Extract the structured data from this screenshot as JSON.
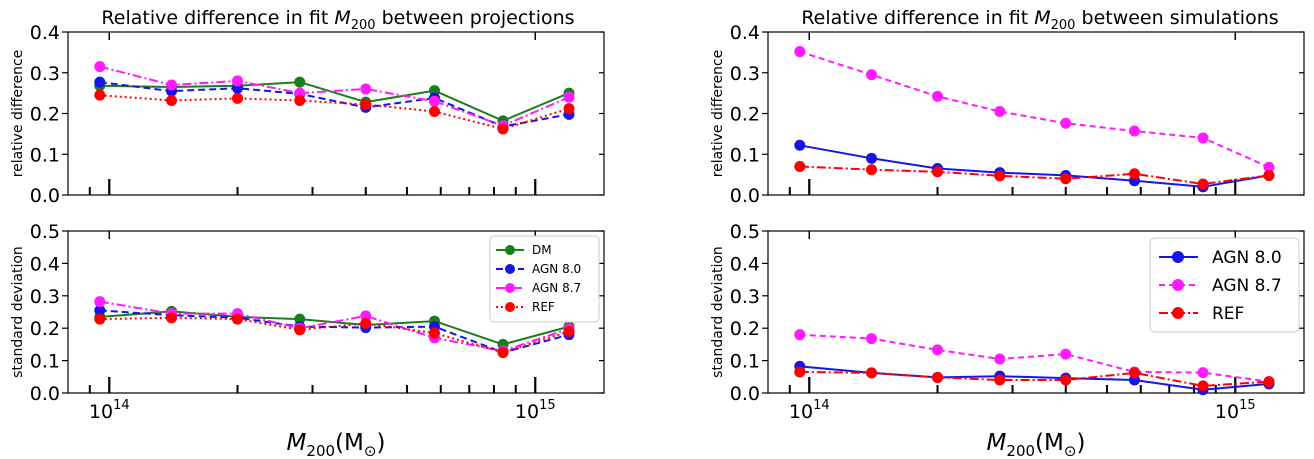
{
  "figure": {
    "xlabel": "M200 (M⊙)",
    "xlabel_main": "M",
    "xlabel_sub": "200",
    "xlabel_unit": "(M",
    "xlabel_unit_sub": "⊙",
    "xlabel_close": ")"
  },
  "chart_data": [
    {
      "panel": "left",
      "type": "line",
      "title_prefix": "Relative difference in fit ",
      "title_var": "M",
      "title_sub": "200",
      "title_suffix": " between projections",
      "xlabel": "M200 (M⊙)",
      "x_scale": "log",
      "x_ticks": [
        "10^14",
        "10^15"
      ],
      "x": [
        95000000000000.0,
        140000000000000.0,
        200000000000000.0,
        280000000000000.0,
        400000000000000.0,
        580000000000000.0,
        840000000000000.0,
        1200000000000000.0
      ],
      "top": {
        "ylabel": "relative difference",
        "ylim": [
          0,
          0.4
        ],
        "yticks": [
          "0.0",
          "0.1",
          "0.2",
          "0.3",
          "0.4"
        ],
        "series": [
          {
            "key": "dm",
            "values": [
              0.268,
              0.265,
              0.268,
              0.277,
              0.228,
              0.256,
              0.182,
              0.25
            ]
          },
          {
            "key": "agn80",
            "values": [
              0.277,
              0.255,
              0.262,
              0.248,
              0.215,
              0.238,
              0.168,
              0.198
            ]
          },
          {
            "key": "agn87",
            "values": [
              0.315,
              0.27,
              0.28,
              0.25,
              0.26,
              0.23,
              0.17,
              0.24
            ]
          },
          {
            "key": "ref",
            "values": [
              0.245,
              0.232,
              0.237,
              0.232,
              0.222,
              0.205,
              0.162,
              0.212
            ]
          }
        ]
      },
      "bottom": {
        "ylabel": "standard deviation",
        "ylim": [
          0,
          0.5
        ],
        "yticks": [
          "0.0",
          "0.1",
          "0.2",
          "0.3",
          "0.4",
          "0.5"
        ],
        "series": [
          {
            "key": "dm",
            "values": [
              0.235,
              0.252,
              0.235,
              0.228,
              0.21,
              0.222,
              0.15,
              0.205
            ]
          },
          {
            "key": "agn80",
            "values": [
              0.255,
              0.24,
              0.232,
              0.205,
              0.202,
              0.205,
              0.125,
              0.18
            ]
          },
          {
            "key": "agn87",
            "values": [
              0.282,
              0.245,
              0.245,
              0.2,
              0.238,
              0.17,
              0.13,
              0.198
            ]
          },
          {
            "key": "ref",
            "values": [
              0.228,
              0.232,
              0.228,
              0.195,
              0.215,
              0.185,
              0.125,
              0.19
            ]
          }
        ]
      },
      "legend": {
        "placement": "right",
        "entries": [
          {
            "key": "dm",
            "name": "DM"
          },
          {
            "key": "agn80",
            "name": "AGN 8.0"
          },
          {
            "key": "agn87",
            "name": "AGN 8.7"
          },
          {
            "key": "ref",
            "name": "REF"
          }
        ]
      }
    },
    {
      "panel": "right",
      "type": "line",
      "title_prefix": "Relative difference in fit ",
      "title_var": "M",
      "title_sub": "200",
      "title_suffix": " between simulations",
      "xlabel": "M200 (M⊙)",
      "x_scale": "log",
      "x_ticks": [
        "10^14",
        "10^15"
      ],
      "x": [
        95000000000000.0,
        140000000000000.0,
        200000000000000.0,
        280000000000000.0,
        400000000000000.0,
        580000000000000.0,
        840000000000000.0,
        1200000000000000.0
      ],
      "top": {
        "ylabel": "relative difference",
        "ylim": [
          0,
          0.4
        ],
        "yticks": [
          "0.0",
          "0.1",
          "0.2",
          "0.3",
          "0.4"
        ],
        "series": [
          {
            "key": "agn80",
            "values": [
              0.122,
              0.09,
              0.065,
              0.055,
              0.048,
              0.035,
              0.02,
              0.048
            ]
          },
          {
            "key": "agn87",
            "values": [
              0.352,
              0.295,
              0.242,
              0.205,
              0.176,
              0.157,
              0.14,
              0.068
            ]
          },
          {
            "key": "ref",
            "values": [
              0.07,
              0.062,
              0.057,
              0.047,
              0.04,
              0.052,
              0.027,
              0.048
            ]
          }
        ]
      },
      "bottom": {
        "ylabel": "standard deviation",
        "ylim": [
          0,
          0.5
        ],
        "yticks": [
          "0.0",
          "0.1",
          "0.2",
          "0.3",
          "0.4",
          "0.5"
        ],
        "series": [
          {
            "key": "agn80",
            "values": [
              0.082,
              0.062,
              0.048,
              0.052,
              0.046,
              0.04,
              0.01,
              0.028
            ]
          },
          {
            "key": "agn87",
            "values": [
              0.18,
              0.168,
              0.133,
              0.105,
              0.12,
              0.065,
              0.063,
              0.035
            ]
          },
          {
            "key": "ref",
            "values": [
              0.065,
              0.062,
              0.048,
              0.04,
              0.04,
              0.062,
              0.022,
              0.035
            ]
          }
        ]
      },
      "legend": {
        "placement": "right",
        "entries": [
          {
            "key": "agn80",
            "name": "AGN 8.0"
          },
          {
            "key": "agn87",
            "name": "AGN 8.7"
          },
          {
            "key": "ref",
            "name": "REF"
          }
        ]
      }
    }
  ],
  "styles": {
    "left": {
      "dm": {
        "color": "#1a7f1a",
        "dash": ""
      },
      "agn80": {
        "color": "#1515e8",
        "dash": "7,4"
      },
      "agn87": {
        "color": "#ff1aff",
        "dash": "9,3,2,3"
      },
      "ref": {
        "color": "#ff0000",
        "dash": "2,3"
      }
    },
    "right": {
      "agn80": {
        "color": "#1515e8",
        "dash": ""
      },
      "agn87": {
        "color": "#ff1aff",
        "dash": "6,4"
      },
      "ref": {
        "color": "#ff0000",
        "dash": "9,3,2,3"
      }
    }
  }
}
